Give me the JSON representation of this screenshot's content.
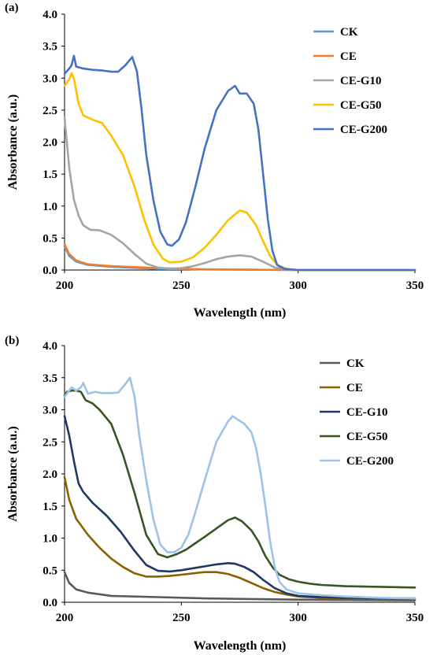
{
  "chart_data": [
    {
      "panel_label": "(a)",
      "type": "line",
      "xlabel": "Wavelength (nm)",
      "ylabel": "Absorbance (a.u.)",
      "xlim": [
        200,
        350
      ],
      "ylim": [
        0,
        4.0
      ],
      "xticks": [
        "200",
        "250",
        "300",
        "350"
      ],
      "yticks": [
        "0.0",
        "0.5",
        "1.0",
        "1.5",
        "2.0",
        "2.5",
        "3.0",
        "3.5",
        "4.0"
      ],
      "grid": false,
      "legend_position": "top-right",
      "series": [
        {
          "name": "CK",
          "color": "#5b9bd5",
          "points": [
            [
              200,
              0.37
            ],
            [
              202,
              0.22
            ],
            [
              205,
              0.13
            ],
            [
              210,
              0.08
            ],
            [
              220,
              0.05
            ],
            [
              240,
              0.02
            ],
            [
              260,
              0.01
            ],
            [
              300,
              0.0
            ],
            [
              350,
              0.0
            ]
          ]
        },
        {
          "name": "CE",
          "color": "#ed7d31",
          "points": [
            [
              200,
              0.4
            ],
            [
              202,
              0.25
            ],
            [
              205,
              0.15
            ],
            [
              210,
              0.09
            ],
            [
              220,
              0.06
            ],
            [
              240,
              0.03
            ],
            [
              260,
              0.01
            ],
            [
              300,
              0.0
            ],
            [
              350,
              0.0
            ]
          ]
        },
        {
          "name": "CE-G10",
          "color": "#a5a5a5",
          "points": [
            [
              200,
              2.38
            ],
            [
              202,
              1.6
            ],
            [
              204,
              1.1
            ],
            [
              206,
              0.85
            ],
            [
              208,
              0.7
            ],
            [
              211,
              0.63
            ],
            [
              215,
              0.62
            ],
            [
              220,
              0.55
            ],
            [
              225,
              0.42
            ],
            [
              230,
              0.25
            ],
            [
              235,
              0.1
            ],
            [
              240,
              0.04
            ],
            [
              245,
              0.02
            ],
            [
              250,
              0.03
            ],
            [
              255,
              0.06
            ],
            [
              260,
              0.11
            ],
            [
              265,
              0.17
            ],
            [
              270,
              0.21
            ],
            [
              275,
              0.23
            ],
            [
              280,
              0.21
            ],
            [
              285,
              0.13
            ],
            [
              290,
              0.04
            ],
            [
              295,
              0.01
            ],
            [
              300,
              0.0
            ],
            [
              350,
              0.0
            ]
          ]
        },
        {
          "name": "CE-G50",
          "color": "#ffc000",
          "points": [
            [
              200,
              2.88
            ],
            [
              202,
              2.98
            ],
            [
              203,
              3.08
            ],
            [
              204,
              3.0
            ],
            [
              206,
              2.6
            ],
            [
              208,
              2.42
            ],
            [
              212,
              2.35
            ],
            [
              216,
              2.3
            ],
            [
              220,
              2.1
            ],
            [
              225,
              1.8
            ],
            [
              230,
              1.3
            ],
            [
              234,
              0.8
            ],
            [
              238,
              0.4
            ],
            [
              242,
              0.18
            ],
            [
              245,
              0.12
            ],
            [
              250,
              0.13
            ],
            [
              255,
              0.2
            ],
            [
              260,
              0.35
            ],
            [
              265,
              0.55
            ],
            [
              270,
              0.78
            ],
            [
              275,
              0.93
            ],
            [
              278,
              0.9
            ],
            [
              282,
              0.7
            ],
            [
              285,
              0.45
            ],
            [
              288,
              0.22
            ],
            [
              291,
              0.08
            ],
            [
              295,
              0.02
            ],
            [
              300,
              0.0
            ],
            [
              350,
              0.0
            ]
          ]
        },
        {
          "name": "CE-G200",
          "color": "#4472c4",
          "points": [
            [
              200,
              3.07
            ],
            [
              202,
              3.15
            ],
            [
              203,
              3.2
            ],
            [
              204,
              3.35
            ],
            [
              205,
              3.18
            ],
            [
              208,
              3.15
            ],
            [
              212,
              3.13
            ],
            [
              216,
              3.12
            ],
            [
              220,
              3.1
            ],
            [
              223,
              3.1
            ],
            [
              226,
              3.2
            ],
            [
              229,
              3.33
            ],
            [
              231,
              3.1
            ],
            [
              233,
              2.5
            ],
            [
              235,
              1.8
            ],
            [
              238,
              1.1
            ],
            [
              241,
              0.6
            ],
            [
              244,
              0.4
            ],
            [
              246,
              0.38
            ],
            [
              249,
              0.48
            ],
            [
              252,
              0.75
            ],
            [
              256,
              1.3
            ],
            [
              260,
              1.9
            ],
            [
              265,
              2.5
            ],
            [
              270,
              2.8
            ],
            [
              273,
              2.88
            ],
            [
              275,
              2.76
            ],
            [
              278,
              2.76
            ],
            [
              281,
              2.6
            ],
            [
              283,
              2.2
            ],
            [
              285,
              1.5
            ],
            [
              287,
              0.8
            ],
            [
              289,
              0.3
            ],
            [
              291,
              0.08
            ],
            [
              294,
              0.02
            ],
            [
              300,
              0.0
            ],
            [
              350,
              0.0
            ]
          ]
        }
      ]
    },
    {
      "panel_label": "(b)",
      "type": "line",
      "xlabel": "Wavelength (nm)",
      "ylabel": "Absorbance (a.u.)",
      "xlim": [
        200,
        350
      ],
      "ylim": [
        0,
        4.0
      ],
      "xticks": [
        "200",
        "250",
        "300",
        "350"
      ],
      "yticks": [
        "0.0",
        "0.5",
        "1.0",
        "1.5",
        "2.0",
        "2.5",
        "3.0",
        "3.5",
        "4.0"
      ],
      "grid": false,
      "legend_position": "top-right",
      "series": [
        {
          "name": "CK",
          "color": "#595959",
          "points": [
            [
              200,
              0.47
            ],
            [
              202,
              0.3
            ],
            [
              205,
              0.2
            ],
            [
              210,
              0.15
            ],
            [
              220,
              0.1
            ],
            [
              240,
              0.08
            ],
            [
              260,
              0.06
            ],
            [
              280,
              0.05
            ],
            [
              300,
              0.04
            ],
            [
              350,
              0.03
            ]
          ]
        },
        {
          "name": "CE",
          "color": "#8c6200",
          "points": [
            [
              200,
              1.95
            ],
            [
              202,
              1.6
            ],
            [
              205,
              1.3
            ],
            [
              210,
              1.05
            ],
            [
              215,
              0.85
            ],
            [
              220,
              0.68
            ],
            [
              225,
              0.55
            ],
            [
              230,
              0.45
            ],
            [
              235,
              0.4
            ],
            [
              240,
              0.4
            ],
            [
              245,
              0.41
            ],
            [
              250,
              0.43
            ],
            [
              255,
              0.45
            ],
            [
              260,
              0.47
            ],
            [
              265,
              0.47
            ],
            [
              270,
              0.44
            ],
            [
              275,
              0.38
            ],
            [
              280,
              0.3
            ],
            [
              285,
              0.22
            ],
            [
              290,
              0.16
            ],
            [
              295,
              0.12
            ],
            [
              300,
              0.09
            ],
            [
              310,
              0.07
            ],
            [
              320,
              0.06
            ],
            [
              335,
              0.05
            ],
            [
              350,
              0.05
            ]
          ]
        },
        {
          "name": "CE-G10",
          "color": "#1f3864",
          "points": [
            [
              200,
              2.9
            ],
            [
              202,
              2.6
            ],
            [
              204,
              2.2
            ],
            [
              206,
              1.85
            ],
            [
              208,
              1.72
            ],
            [
              212,
              1.55
            ],
            [
              218,
              1.35
            ],
            [
              224,
              1.1
            ],
            [
              230,
              0.8
            ],
            [
              235,
              0.58
            ],
            [
              240,
              0.49
            ],
            [
              245,
              0.48
            ],
            [
              250,
              0.5
            ],
            [
              255,
              0.53
            ],
            [
              260,
              0.56
            ],
            [
              265,
              0.59
            ],
            [
              270,
              0.61
            ],
            [
              273,
              0.6
            ],
            [
              277,
              0.55
            ],
            [
              281,
              0.47
            ],
            [
              285,
              0.35
            ],
            [
              290,
              0.22
            ],
            [
              295,
              0.14
            ],
            [
              300,
              0.1
            ],
            [
              310,
              0.08
            ],
            [
              320,
              0.07
            ],
            [
              335,
              0.06
            ],
            [
              350,
              0.06
            ]
          ]
        },
        {
          "name": "CE-G50",
          "color": "#375623",
          "points": [
            [
              200,
              3.22
            ],
            [
              201,
              3.28
            ],
            [
              203,
              3.3
            ],
            [
              205,
              3.3
            ],
            [
              207,
              3.28
            ],
            [
              209,
              3.15
            ],
            [
              212,
              3.1
            ],
            [
              215,
              3.0
            ],
            [
              220,
              2.78
            ],
            [
              225,
              2.3
            ],
            [
              230,
              1.7
            ],
            [
              235,
              1.05
            ],
            [
              240,
              0.75
            ],
            [
              244,
              0.7
            ],
            [
              248,
              0.75
            ],
            [
              252,
              0.82
            ],
            [
              256,
              0.92
            ],
            [
              260,
              1.02
            ],
            [
              265,
              1.15
            ],
            [
              270,
              1.28
            ],
            [
              273,
              1.32
            ],
            [
              276,
              1.26
            ],
            [
              280,
              1.12
            ],
            [
              283,
              0.95
            ],
            [
              286,
              0.72
            ],
            [
              289,
              0.55
            ],
            [
              292,
              0.43
            ],
            [
              296,
              0.36
            ],
            [
              300,
              0.32
            ],
            [
              305,
              0.29
            ],
            [
              310,
              0.27
            ],
            [
              320,
              0.25
            ],
            [
              335,
              0.24
            ],
            [
              350,
              0.23
            ]
          ]
        },
        {
          "name": "CE-G200",
          "color": "#9dc3e6",
          "points": [
            [
              200,
              3.2
            ],
            [
              202,
              3.3
            ],
            [
              203,
              3.35
            ],
            [
              205,
              3.3
            ],
            [
              207,
              3.35
            ],
            [
              208,
              3.42
            ],
            [
              210,
              3.25
            ],
            [
              213,
              3.28
            ],
            [
              216,
              3.26
            ],
            [
              220,
              3.26
            ],
            [
              223,
              3.27
            ],
            [
              226,
              3.4
            ],
            [
              228,
              3.5
            ],
            [
              230,
              3.2
            ],
            [
              232,
              2.6
            ],
            [
              235,
              1.9
            ],
            [
              238,
              1.3
            ],
            [
              241,
              0.9
            ],
            [
              244,
              0.78
            ],
            [
              247,
              0.78
            ],
            [
              250,
              0.85
            ],
            [
              253,
              1.05
            ],
            [
              256,
              1.4
            ],
            [
              260,
              1.9
            ],
            [
              265,
              2.5
            ],
            [
              270,
              2.82
            ],
            [
              272,
              2.9
            ],
            [
              274,
              2.85
            ],
            [
              277,
              2.78
            ],
            [
              280,
              2.65
            ],
            [
              282,
              2.4
            ],
            [
              284,
              2.0
            ],
            [
              286,
              1.5
            ],
            [
              288,
              0.95
            ],
            [
              290,
              0.55
            ],
            [
              292,
              0.32
            ],
            [
              295,
              0.2
            ],
            [
              300,
              0.14
            ],
            [
              310,
              0.11
            ],
            [
              320,
              0.09
            ],
            [
              335,
              0.07
            ],
            [
              350,
              0.06
            ]
          ]
        }
      ]
    }
  ]
}
